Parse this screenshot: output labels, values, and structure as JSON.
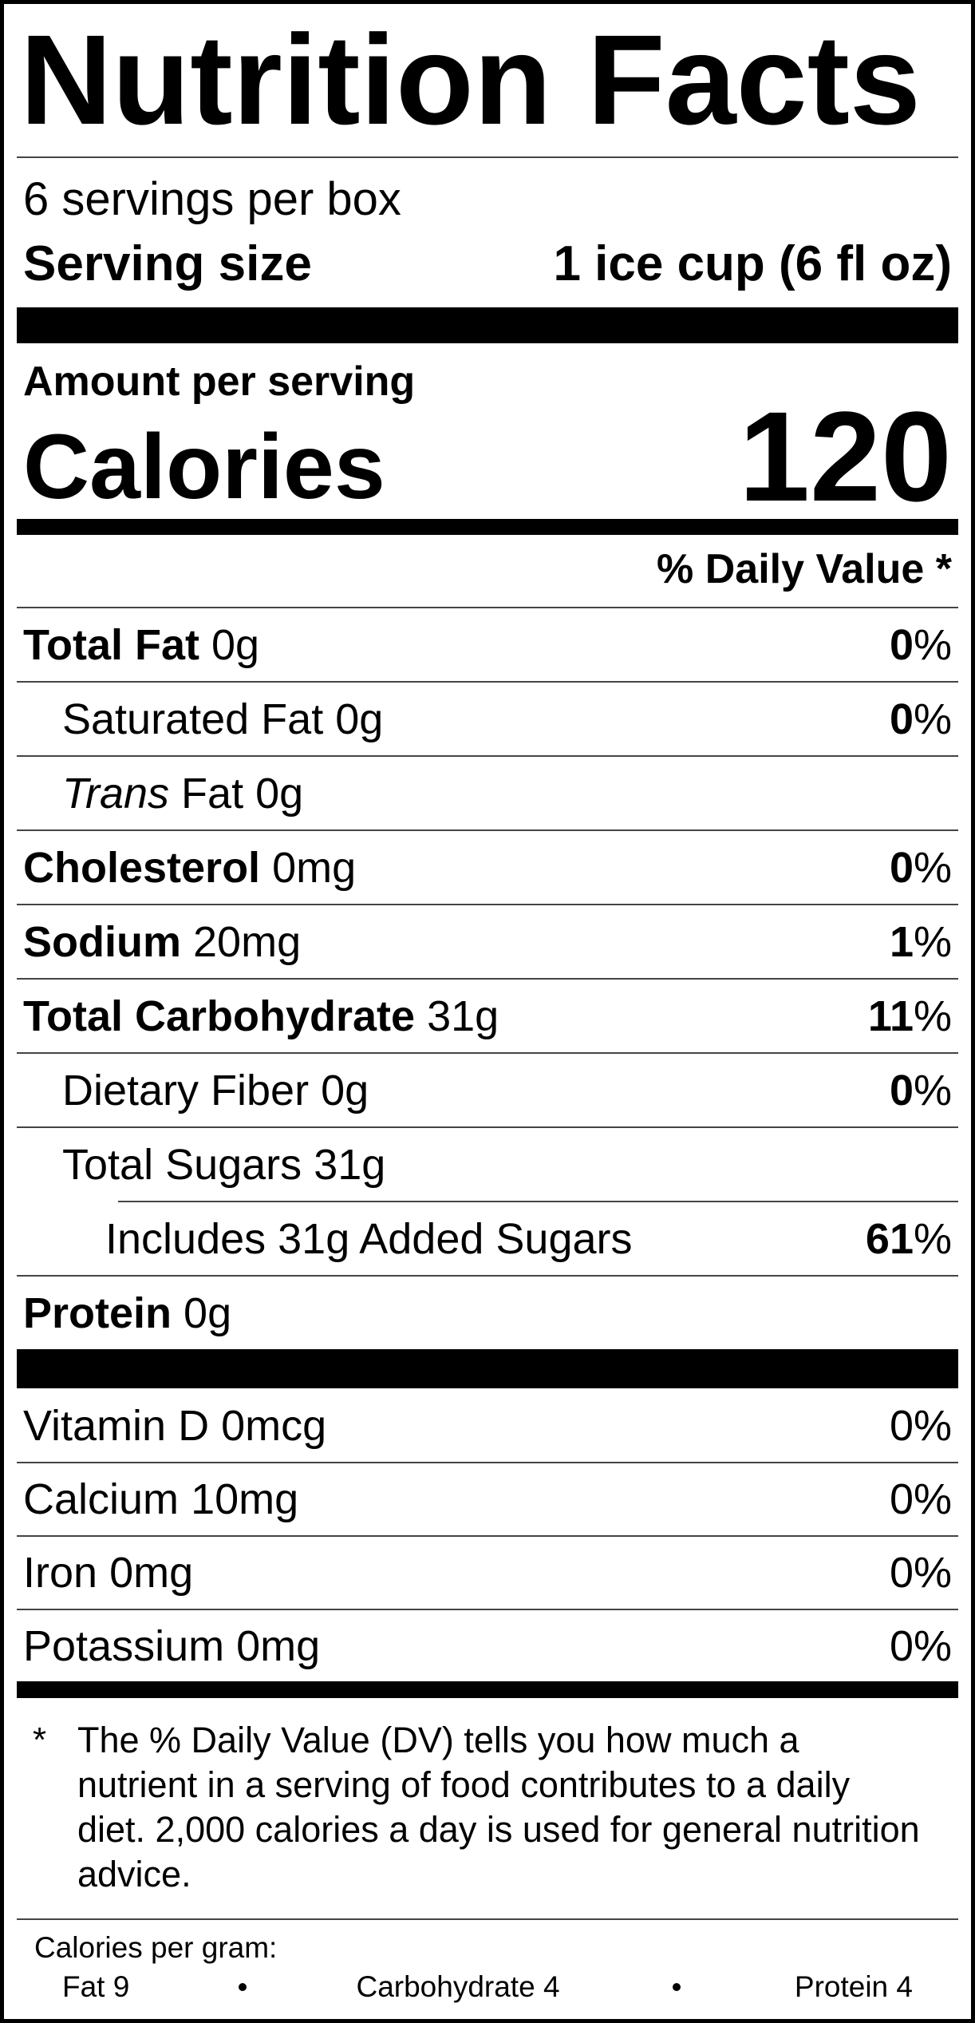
{
  "title": "Nutrition Facts",
  "servings": "6 servings per box",
  "serving_size": {
    "label": "Serving size",
    "value": "1 ice cup (6 fl oz)"
  },
  "amount_per_serving": "Amount per serving",
  "calories": {
    "label": "Calories",
    "value": "120"
  },
  "daily_value_header": "% Daily Value *",
  "nutrients": [
    {
      "name": "Total Fat",
      "amount": "0g",
      "dv": "0%",
      "sub": [
        {
          "name": "Saturated Fat",
          "amount": "0g",
          "dv": "0%"
        },
        {
          "name_italic": "Trans",
          "name": "Fat",
          "amount": "0g"
        }
      ]
    },
    {
      "name": "Cholesterol",
      "amount": "0mg",
      "dv": "0%"
    },
    {
      "name": "Sodium",
      "amount": "20mg",
      "dv": "1%"
    },
    {
      "name": "Total Carbohydrate",
      "amount": "31g",
      "dv": "11%",
      "sub": [
        {
          "name": "Dietary Fiber",
          "amount": "0g",
          "dv": "0%"
        },
        {
          "name": "Total Sugars",
          "amount": "31g",
          "sub": [
            {
              "name": "Includes 31g Added Sugars",
              "dv": "61%"
            }
          ]
        }
      ]
    },
    {
      "name": "Protein",
      "amount": "0g"
    }
  ],
  "vitamins": [
    {
      "name": "Vitamin D",
      "amount": "0mcg",
      "dv": "0%"
    },
    {
      "name": "Calcium",
      "amount": "10mg",
      "dv": "0%"
    },
    {
      "name": "Iron",
      "amount": "0mg",
      "dv": "0%"
    },
    {
      "name": "Potassium",
      "amount": "0mg",
      "dv": "0%"
    }
  ],
  "footnote": {
    "marker": "*",
    "text": "The % Daily Value (DV) tells you how much a nutrient in a serving of food contributes to a daily diet. 2,000 calories a day is used for general nutrition advice."
  },
  "calories_per_gram": {
    "label": "Calories per gram:",
    "items": [
      "Fat 9",
      "Carbohydrate 4",
      "Protein 4"
    ]
  }
}
